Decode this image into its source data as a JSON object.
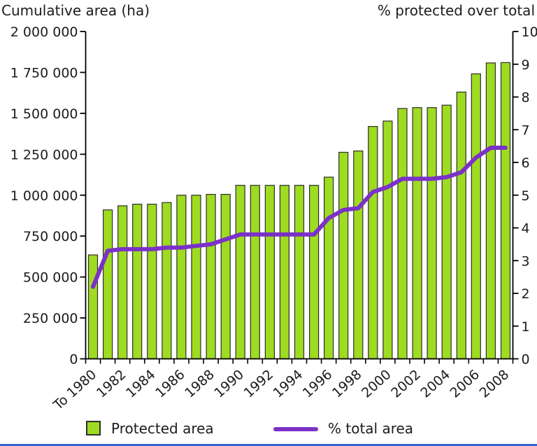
{
  "titles": {
    "left": "Cumulative area (ha)",
    "right": "% protected over total"
  },
  "legend": {
    "bar_label": "Protected area",
    "line_label": "% total area"
  },
  "colors": {
    "bar_fill": "#9EDB21",
    "bar_stroke": "#2E2E2E",
    "line": "#7B31C7",
    "axis": "#000000",
    "text": "#1C1C1C",
    "footer": "#3366CC"
  },
  "chart_data": {
    "type": "bar+line",
    "title": "",
    "categories": [
      "To 1980",
      "1981",
      "1982",
      "1983",
      "1984",
      "1985",
      "1986",
      "1987",
      "1988",
      "1989",
      "1990",
      "1991",
      "1992",
      "1993",
      "1994",
      "1995",
      "1996",
      "1997",
      "1998",
      "1999",
      "2000",
      "2001",
      "2002",
      "2003",
      "2004",
      "2005",
      "2006",
      "2007",
      "2008"
    ],
    "x_tick_labels": [
      "To 1980",
      "1982",
      "1984",
      "1986",
      "1988",
      "1990",
      "1992",
      "1994",
      "1996",
      "1998",
      "2000",
      "2002",
      "2004",
      "2006",
      "2008"
    ],
    "series": [
      {
        "name": "Protected area",
        "type": "bar",
        "axis": "left",
        "values": [
          635000,
          910000,
          935000,
          945000,
          945000,
          955000,
          1000000,
          1000000,
          1005000,
          1005000,
          1060000,
          1060000,
          1060000,
          1060000,
          1060000,
          1060000,
          1110000,
          1262000,
          1270000,
          1420000,
          1453000,
          1530000,
          1535000,
          1535000,
          1550000,
          1630000,
          1741000,
          1808000,
          1810000
        ]
      },
      {
        "name": "% total area",
        "type": "line",
        "axis": "right",
        "values": [
          2.2,
          3.3,
          3.35,
          3.35,
          3.35,
          3.4,
          3.4,
          3.45,
          3.5,
          3.65,
          3.8,
          3.8,
          3.8,
          3.8,
          3.8,
          3.8,
          4.3,
          4.55,
          4.6,
          5.1,
          5.25,
          5.5,
          5.5,
          5.5,
          5.55,
          5.7,
          6.15,
          6.45,
          6.45
        ]
      }
    ],
    "left_axis": {
      "label": "Cumulative area (ha)",
      "min": 0,
      "max": 2000000,
      "tick_step": 250000,
      "tick_labels": [
        "0",
        "250 000",
        "500 000",
        "750 000",
        "1 000 000",
        "1 250 000",
        "1 500 000",
        "1 750 000",
        "2 000 000"
      ]
    },
    "right_axis": {
      "label": "% protected over total",
      "min": 0,
      "max": 10,
      "tick_step": 1,
      "tick_labels": [
        "0",
        "1",
        "2",
        "3",
        "4",
        "5",
        "6",
        "7",
        "8",
        "9",
        "10"
      ]
    },
    "grid": false,
    "legend_position": "bottom"
  }
}
